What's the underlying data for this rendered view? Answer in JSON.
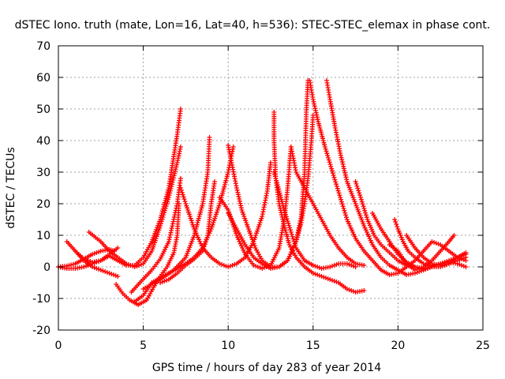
{
  "chart_data": {
    "type": "scatter",
    "title": "dSTEC Iono. truth (mate, Lon=16, Lat=40, h=536): STEC-STEC_elemax in phase cont.",
    "xlabel": "GPS time / hours of day 283 of year 2014",
    "ylabel": "dSTEC  / TECUs",
    "xlim": [
      0,
      25
    ],
    "ylim": [
      -20,
      70
    ],
    "xticks": [
      0,
      5,
      10,
      15,
      20,
      25
    ],
    "yticks": [
      -20,
      -10,
      0,
      10,
      20,
      30,
      40,
      50,
      60,
      70
    ],
    "grid": true,
    "marker": "+",
    "color": "#ff0000",
    "series": [
      {
        "points": [
          [
            0.0,
            0.0
          ],
          [
            0.5,
            0.3
          ],
          [
            1.0,
            1.0
          ],
          [
            1.5,
            2.5
          ],
          [
            2.0,
            4.0
          ],
          [
            2.5,
            5.0
          ],
          [
            3.0,
            5.5
          ],
          [
            3.3,
            5.0
          ]
        ]
      },
      {
        "points": [
          [
            0.5,
            8.0
          ],
          [
            1.0,
            5.0
          ],
          [
            1.5,
            2.5
          ],
          [
            2.0,
            1.5
          ],
          [
            2.5,
            2.0
          ],
          [
            3.0,
            4.0
          ],
          [
            3.5,
            6.0
          ]
        ]
      },
      {
        "points": [
          [
            1.0,
            5.0
          ],
          [
            1.5,
            2.0
          ],
          [
            2.0,
            0.0
          ],
          [
            2.5,
            -1.0
          ],
          [
            3.0,
            -2.0
          ],
          [
            3.5,
            -3.0
          ]
        ]
      },
      {
        "points": [
          [
            1.8,
            11.0
          ],
          [
            2.5,
            8.0
          ],
          [
            3.0,
            5.0
          ],
          [
            3.5,
            3.0
          ],
          [
            4.0,
            1.0
          ],
          [
            4.5,
            0.0
          ],
          [
            5.0,
            1.0
          ],
          [
            5.5,
            5.0
          ],
          [
            6.0,
            13.0
          ],
          [
            6.5,
            22.0
          ],
          [
            7.0,
            33.0
          ],
          [
            7.2,
            38.0
          ]
        ]
      },
      {
        "points": [
          [
            0.0,
            0.0
          ],
          [
            0.5,
            -0.5
          ],
          [
            1.0,
            -0.5
          ],
          [
            1.5,
            0.0
          ],
          [
            2.0,
            1.0
          ],
          [
            2.5,
            2.0
          ],
          [
            3.0,
            3.5
          ],
          [
            3.5,
            2.0
          ],
          [
            4.0,
            0.5
          ],
          [
            4.5,
            0.5
          ],
          [
            5.0,
            3.0
          ],
          [
            5.5,
            8.0
          ],
          [
            6.0,
            15.0
          ],
          [
            6.5,
            25.0
          ],
          [
            7.0,
            42.0
          ],
          [
            7.2,
            50.0
          ]
        ]
      },
      {
        "points": [
          [
            3.4,
            -5.5
          ],
          [
            3.8,
            -8.5
          ],
          [
            4.2,
            -10.5
          ],
          [
            4.7,
            -12.0
          ],
          [
            5.2,
            -10.5
          ],
          [
            5.6,
            -6.5
          ],
          [
            6.0,
            -3.0
          ],
          [
            6.4,
            0.0
          ],
          [
            6.8,
            4.5
          ],
          [
            7.0,
            10.0
          ],
          [
            7.1,
            20.0
          ]
        ]
      },
      {
        "points": [
          [
            4.3,
            -8.0
          ],
          [
            4.8,
            -5.0
          ],
          [
            5.5,
            -1.0
          ],
          [
            6.0,
            2.5
          ],
          [
            6.5,
            8.0
          ],
          [
            7.0,
            20.0
          ],
          [
            7.2,
            28.0
          ]
        ]
      },
      {
        "points": [
          [
            4.5,
            -11.0
          ],
          [
            5.0,
            -9.0
          ],
          [
            5.5,
            -5.0
          ],
          [
            6.0,
            -3.5
          ],
          [
            6.5,
            -2.0
          ],
          [
            7.0,
            -0.5
          ],
          [
            7.5,
            1.0
          ],
          [
            8.0,
            3.0
          ],
          [
            8.5,
            6.0
          ],
          [
            9.0,
            12.0
          ],
          [
            9.5,
            20.0
          ],
          [
            10.0,
            30.0
          ],
          [
            10.3,
            38.0
          ]
        ]
      },
      {
        "points": [
          [
            6.0,
            -5.0
          ],
          [
            6.5,
            -4.0
          ],
          [
            7.0,
            -2.0
          ],
          [
            7.5,
            0.5
          ],
          [
            8.0,
            2.5
          ],
          [
            8.5,
            5.0
          ],
          [
            8.8,
            10.0
          ],
          [
            9.0,
            20.0
          ],
          [
            9.2,
            27.0
          ]
        ]
      },
      {
        "points": [
          [
            5.0,
            -7.0
          ],
          [
            6.0,
            -4.0
          ],
          [
            6.8,
            -1.0
          ],
          [
            7.5,
            3.0
          ],
          [
            8.0,
            10.0
          ],
          [
            8.5,
            20.0
          ],
          [
            8.8,
            30.0
          ],
          [
            8.9,
            41.0
          ]
        ]
      },
      {
        "points": [
          [
            7.2,
            25.0
          ],
          [
            7.5,
            20.0
          ],
          [
            8.0,
            12.0
          ],
          [
            8.5,
            6.0
          ],
          [
            9.0,
            3.0
          ],
          [
            9.5,
            1.0
          ],
          [
            10.0,
            0.0
          ],
          [
            10.5,
            1.0
          ],
          [
            11.0,
            3.0
          ],
          [
            11.5,
            8.0
          ],
          [
            12.0,
            16.0
          ],
          [
            12.3,
            24.0
          ],
          [
            12.5,
            33.0
          ]
        ]
      },
      {
        "points": [
          [
            9.5,
            22.0
          ],
          [
            10.0,
            18.0
          ],
          [
            10.5,
            10.0
          ],
          [
            11.0,
            4.0
          ],
          [
            11.5,
            0.5
          ],
          [
            12.0,
            -0.5
          ],
          [
            12.5,
            0.5
          ],
          [
            13.0,
            6.0
          ],
          [
            13.3,
            15.0
          ],
          [
            13.5,
            25.0
          ],
          [
            13.7,
            38.0
          ]
        ]
      },
      {
        "points": [
          [
            10.0,
            38.5
          ],
          [
            10.2,
            33.0
          ],
          [
            10.5,
            25.0
          ],
          [
            10.8,
            18.0
          ],
          [
            11.2,
            12.0
          ],
          [
            11.6,
            6.0
          ],
          [
            12.0,
            2.0
          ],
          [
            12.5,
            0.0
          ],
          [
            13.0,
            0.0
          ],
          [
            13.5,
            2.0
          ],
          [
            14.0,
            8.0
          ],
          [
            14.3,
            14.0
          ],
          [
            14.5,
            20.0
          ],
          [
            14.7,
            28.0
          ],
          [
            14.9,
            40.0
          ],
          [
            15.0,
            48.0
          ]
        ]
      },
      {
        "points": [
          [
            10.0,
            17.0
          ],
          [
            10.5,
            12.0
          ],
          [
            11.0,
            7.0
          ],
          [
            11.5,
            3.0
          ],
          [
            12.0,
            1.0
          ],
          [
            12.5,
            -0.5
          ],
          [
            13.0,
            0.0
          ],
          [
            13.5,
            2.0
          ],
          [
            14.0,
            8.0
          ],
          [
            14.3,
            16.0
          ],
          [
            14.5,
            30.0
          ],
          [
            14.6,
            49.0
          ],
          [
            14.7,
            59.0
          ]
        ]
      },
      {
        "points": [
          [
            12.7,
            30.0
          ],
          [
            13.0,
            24.0
          ],
          [
            13.3,
            18.0
          ],
          [
            13.7,
            11.0
          ],
          [
            14.0,
            6.0
          ],
          [
            14.5,
            2.0
          ],
          [
            15.0,
            0.5
          ],
          [
            15.5,
            -0.5
          ],
          [
            16.0,
            0.0
          ],
          [
            16.5,
            1.0
          ],
          [
            17.0,
            1.0
          ],
          [
            17.5,
            0.0
          ]
        ]
      },
      {
        "points": [
          [
            12.7,
            49.0
          ],
          [
            12.7,
            40.0
          ],
          [
            12.8,
            28.0
          ],
          [
            13.0,
            20.0
          ],
          [
            13.3,
            13.0
          ],
          [
            13.6,
            7.0
          ],
          [
            14.0,
            3.0
          ],
          [
            14.5,
            0.0
          ],
          [
            15.0,
            -2.0
          ],
          [
            15.5,
            -3.0
          ],
          [
            16.0,
            -4.0
          ],
          [
            16.5,
            -5.0
          ],
          [
            17.0,
            -7.0
          ],
          [
            17.5,
            -8.0
          ],
          [
            18.0,
            -7.5
          ]
        ]
      },
      {
        "points": [
          [
            13.7,
            38.0
          ],
          [
            14.0,
            30.0
          ],
          [
            14.5,
            25.0
          ],
          [
            15.0,
            20.0
          ],
          [
            15.5,
            15.0
          ],
          [
            16.0,
            10.0
          ],
          [
            16.5,
            6.0
          ],
          [
            17.0,
            3.0
          ],
          [
            17.5,
            1.0
          ],
          [
            18.0,
            0.5
          ]
        ]
      },
      {
        "points": [
          [
            14.8,
            59.0
          ],
          [
            15.0,
            53.0
          ],
          [
            15.3,
            46.0
          ],
          [
            15.7,
            38.0
          ],
          [
            16.2,
            29.0
          ],
          [
            16.6,
            22.0
          ],
          [
            17.0,
            15.0
          ],
          [
            17.5,
            9.0
          ],
          [
            18.0,
            5.0
          ],
          [
            18.5,
            2.0
          ],
          [
            19.0,
            -1.0
          ],
          [
            19.5,
            -2.5
          ],
          [
            20.0,
            -2.0
          ],
          [
            20.5,
            0.0
          ]
        ]
      },
      {
        "points": [
          [
            15.8,
            59.0
          ],
          [
            16.0,
            53.0
          ],
          [
            16.3,
            44.0
          ],
          [
            16.6,
            36.0
          ],
          [
            17.0,
            27.0
          ],
          [
            17.5,
            20.0
          ],
          [
            18.0,
            13.0
          ],
          [
            18.5,
            7.0
          ],
          [
            19.0,
            3.0
          ],
          [
            19.5,
            0.5
          ],
          [
            20.0,
            -1.0
          ],
          [
            20.5,
            -2.5
          ],
          [
            21.0,
            -2.0
          ],
          [
            21.5,
            -1.0
          ]
        ]
      },
      {
        "points": [
          [
            17.5,
            27.0
          ],
          [
            17.8,
            22.0
          ],
          [
            18.2,
            15.0
          ],
          [
            18.6,
            10.0
          ],
          [
            19.0,
            7.0
          ],
          [
            19.5,
            4.5
          ],
          [
            20.0,
            2.0
          ],
          [
            20.5,
            0.5
          ],
          [
            21.0,
            0.0
          ],
          [
            21.5,
            -1.0
          ],
          [
            22.0,
            0.0
          ]
        ]
      },
      {
        "points": [
          [
            18.5,
            17.0
          ],
          [
            19.0,
            12.0
          ],
          [
            19.5,
            8.0
          ],
          [
            20.0,
            4.0
          ],
          [
            20.5,
            1.5
          ],
          [
            21.0,
            0.0
          ],
          [
            21.5,
            -0.5
          ],
          [
            22.0,
            0.0
          ]
        ]
      },
      {
        "points": [
          [
            19.8,
            15.0
          ],
          [
            20.0,
            12.0
          ],
          [
            20.3,
            8.0
          ],
          [
            20.6,
            5.0
          ],
          [
            21.0,
            3.0
          ],
          [
            21.5,
            1.0
          ],
          [
            22.0,
            0.0
          ],
          [
            22.5,
            0.0
          ],
          [
            23.0,
            1.0
          ],
          [
            23.5,
            3.0
          ],
          [
            24.0,
            4.0
          ]
        ]
      },
      {
        "points": [
          [
            20.5,
            0.0
          ],
          [
            21.0,
            2.0
          ],
          [
            21.5,
            5.0
          ],
          [
            22.0,
            8.0
          ],
          [
            22.5,
            7.0
          ],
          [
            23.0,
            5.0
          ],
          [
            23.5,
            3.0
          ],
          [
            24.0,
            2.0
          ]
        ]
      },
      {
        "points": [
          [
            19.5,
            7.0
          ],
          [
            20.0,
            5.0
          ],
          [
            20.5,
            1.0
          ],
          [
            21.0,
            -1.0
          ],
          [
            21.5,
            0.0
          ],
          [
            22.0,
            2.0
          ],
          [
            22.5,
            5.0
          ],
          [
            23.0,
            8.0
          ],
          [
            23.3,
            10.0
          ]
        ]
      },
      {
        "points": [
          [
            21.5,
            -1.0
          ],
          [
            22.0,
            0.0
          ],
          [
            22.5,
            1.0
          ],
          [
            23.0,
            2.0
          ],
          [
            23.5,
            3.0
          ],
          [
            24.0,
            4.5
          ]
        ]
      },
      {
        "points": [
          [
            20.5,
            10.0
          ],
          [
            21.0,
            6.0
          ],
          [
            21.5,
            3.0
          ],
          [
            22.0,
            1.0
          ],
          [
            22.5,
            0.5
          ],
          [
            23.0,
            1.0
          ],
          [
            23.5,
            2.0
          ],
          [
            24.0,
            3.0
          ]
        ]
      },
      {
        "points": [
          [
            22.0,
            0.5
          ],
          [
            22.5,
            1.0
          ],
          [
            23.0,
            1.5
          ],
          [
            23.5,
            1.0
          ],
          [
            24.0,
            0.0
          ]
        ]
      }
    ]
  }
}
